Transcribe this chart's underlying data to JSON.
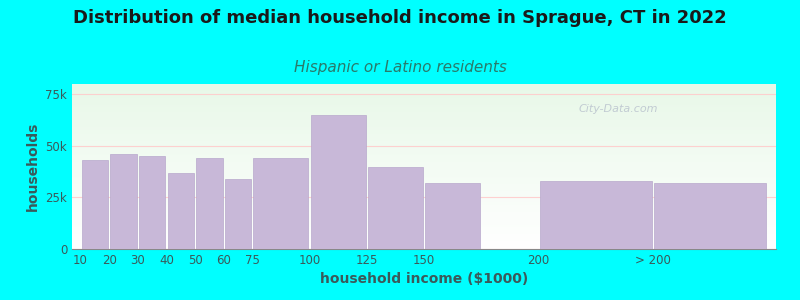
{
  "title": "Distribution of median household income in Sprague, CT in 2022",
  "subtitle": "Hispanic or Latino residents",
  "xlabel": "household income ($1000)",
  "ylabel": "households",
  "background_color": "#00FFFF",
  "bar_color": "#c8b8d8",
  "bar_edge_color": "#b8a8cc",
  "categories": [
    "10",
    "20",
    "30",
    "40",
    "50",
    "60",
    "75",
    "100",
    "125",
    "150",
    "200",
    "> 200"
  ],
  "values": [
    43000,
    46000,
    45000,
    37000,
    44000,
    34000,
    44000,
    65000,
    40000,
    32000,
    33000,
    32000
  ],
  "ylim": [
    0,
    80000
  ],
  "yticks": [
    0,
    25000,
    50000,
    75000
  ],
  "ytick_labels": [
    "0",
    "25k",
    "50k",
    "75k"
  ],
  "title_fontsize": 13,
  "subtitle_fontsize": 11,
  "axis_label_fontsize": 10,
  "tick_fontsize": 8.5,
  "title_color": "#1a1a1a",
  "subtitle_color": "#2a7a6a",
  "axis_label_color": "#3a5a5a",
  "tick_color": "#3a5a5a",
  "watermark_text": "City-Data.com",
  "grid_color": "#ffcccc",
  "x_positions": [
    0,
    1,
    2,
    3,
    4,
    5,
    6,
    8,
    10,
    12,
    16,
    20
  ],
  "bar_widths": [
    1,
    1,
    1,
    1,
    1,
    1,
    2,
    2,
    2,
    2,
    4,
    4
  ],
  "xlim": [
    -0.3,
    24.3
  ]
}
